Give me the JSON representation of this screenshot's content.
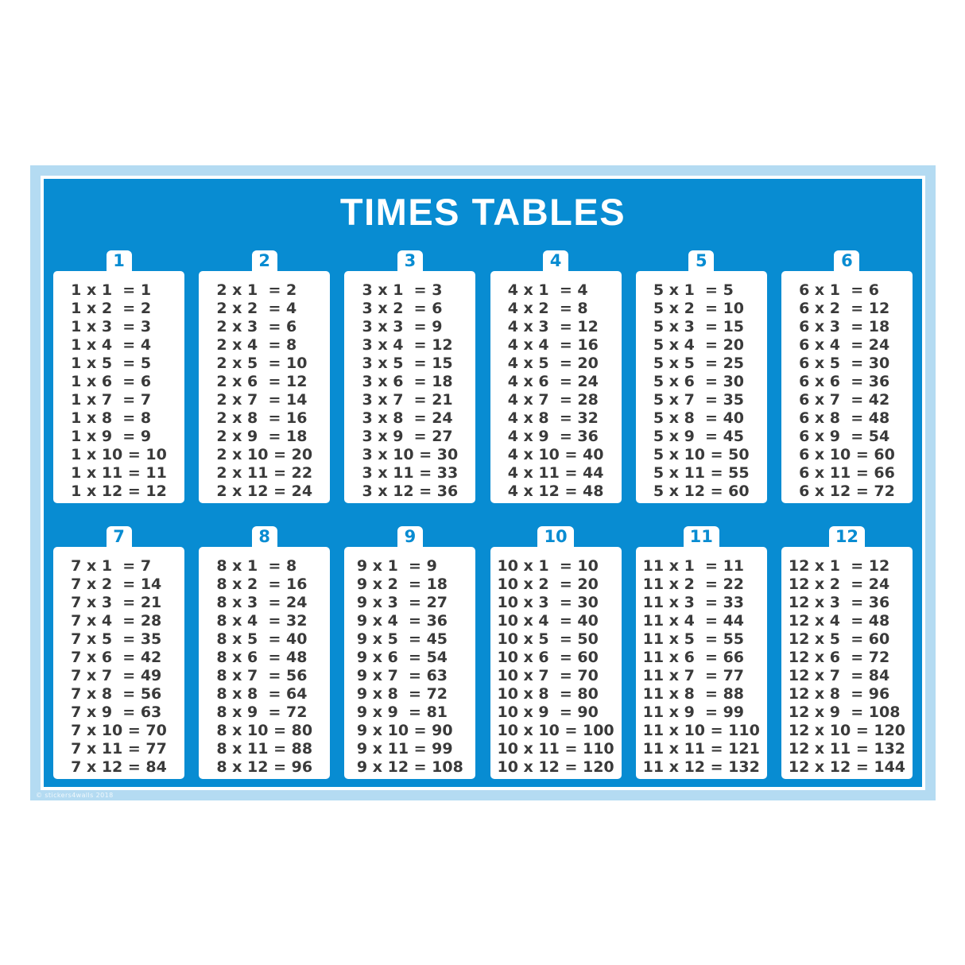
{
  "poster": {
    "title": "TIMES TABLES",
    "copyright": "© stickers4walls 2018"
  },
  "colors": {
    "poster_blue": "#088cd2",
    "frame_light_blue": "#b4dbf2",
    "card_white": "#ffffff",
    "title_white": "#ffffff",
    "equation_gray": "#3a3a3a"
  },
  "tables": [
    {
      "number": "1",
      "lines": [
        "1 x 1  = 1",
        "1 x 2  = 2",
        "1 x 3  = 3",
        "1 x 4  = 4",
        "1 x 5  = 5",
        "1 x 6  = 6",
        "1 x 7  = 7",
        "1 x 8  = 8",
        "1 x 9  = 9",
        "1 x 10 = 10",
        "1 x 11 = 11",
        "1 x 12 = 12"
      ]
    },
    {
      "number": "2",
      "lines": [
        "2 x 1  = 2",
        "2 x 2  = 4",
        "2 x 3  = 6",
        "2 x 4  = 8",
        "2 x 5  = 10",
        "2 x 6  = 12",
        "2 x 7  = 14",
        "2 x 8  = 16",
        "2 x 9  = 18",
        "2 x 10 = 20",
        "2 x 11 = 22",
        "2 x 12 = 24"
      ]
    },
    {
      "number": "3",
      "lines": [
        "3 x 1  = 3",
        "3 x 2  = 6",
        "3 x 3  = 9",
        "3 x 4  = 12",
        "3 x 5  = 15",
        "3 x 6  = 18",
        "3 x 7  = 21",
        "3 x 8  = 24",
        "3 x 9  = 27",
        "3 x 10 = 30",
        "3 x 11 = 33",
        "3 x 12 = 36"
      ]
    },
    {
      "number": "4",
      "lines": [
        "4 x 1  = 4",
        "4 x 2  = 8",
        "4 x 3  = 12",
        "4 x 4  = 16",
        "4 x 5  = 20",
        "4 x 6  = 24",
        "4 x 7  = 28",
        "4 x 8  = 32",
        "4 x 9  = 36",
        "4 x 10 = 40",
        "4 x 11 = 44",
        "4 x 12 = 48"
      ]
    },
    {
      "number": "5",
      "lines": [
        "5 x 1  = 5",
        "5 x 2  = 10",
        "5 x 3  = 15",
        "5 x 4  = 20",
        "5 x 5  = 25",
        "5 x 6  = 30",
        "5 x 7  = 35",
        "5 x 8  = 40",
        "5 x 9  = 45",
        "5 x 10 = 50",
        "5 x 11 = 55",
        "5 x 12 = 60"
      ]
    },
    {
      "number": "6",
      "lines": [
        "6 x 1  = 6",
        "6 x 2  = 12",
        "6 x 3  = 18",
        "6 x 4  = 24",
        "6 x 5  = 30",
        "6 x 6  = 36",
        "6 x 7  = 42",
        "6 x 8  = 48",
        "6 x 9  = 54",
        "6 x 10 = 60",
        "6 x 11 = 66",
        "6 x 12 = 72"
      ]
    },
    {
      "number": "7",
      "lines": [
        "7 x 1  = 7",
        "7 x 2  = 14",
        "7 x 3  = 21",
        "7 x 4  = 28",
        "7 x 5  = 35",
        "7 x 6  = 42",
        "7 x 7  = 49",
        "7 x 8  = 56",
        "7 x 9  = 63",
        "7 x 10 = 70",
        "7 x 11 = 77",
        "7 x 12 = 84"
      ]
    },
    {
      "number": "8",
      "lines": [
        "8 x 1  = 8",
        "8 x 2  = 16",
        "8 x 3  = 24",
        "8 x 4  = 32",
        "8 x 5  = 40",
        "8 x 6  = 48",
        "8 x 7  = 56",
        "8 x 8  = 64",
        "8 x 9  = 72",
        "8 x 10 = 80",
        "8 x 11 = 88",
        "8 x 12 = 96"
      ]
    },
    {
      "number": "9",
      "lines": [
        "9 x 1  = 9",
        "9 x 2  = 18",
        "9 x 3  = 27",
        "9 x 4  = 36",
        "9 x 5  = 45",
        "9 x 6  = 54",
        "9 x 7  = 63",
        "9 x 8  = 72",
        "9 x 9  = 81",
        "9 x 10 = 90",
        "9 x 11 = 99",
        "9 x 12 = 108"
      ]
    },
    {
      "number": "10",
      "lines": [
        "10 x 1  = 10",
        "10 x 2  = 20",
        "10 x 3  = 30",
        "10 x 4  = 40",
        "10 x 5  = 50",
        "10 x 6  = 60",
        "10 x 7  = 70",
        "10 x 8  = 80",
        "10 x 9  = 90",
        "10 x 10 = 100",
        "10 x 11 = 110",
        "10 x 12 = 120"
      ]
    },
    {
      "number": "11",
      "lines": [
        "11 x 1  = 11",
        "11 x 2  = 22",
        "11 x 3  = 33",
        "11 x 4  = 44",
        "11 x 5  = 55",
        "11 x 6  = 66",
        "11 x 7  = 77",
        "11 x 8  = 88",
        "11 x 9  = 99",
        "11 x 10 = 110",
        "11 x 11 = 121",
        "11 x 12 = 132"
      ]
    },
    {
      "number": "12",
      "lines": [
        "12 x 1  = 12",
        "12 x 2  = 24",
        "12 x 3  = 36",
        "12 x 4  = 48",
        "12 x 5  = 60",
        "12 x 6  = 72",
        "12 x 7  = 84",
        "12 x 8  = 96",
        "12 x 9  = 108",
        "12 x 10 = 120",
        "12 x 11 = 132",
        "12 x 12 = 144"
      ]
    }
  ]
}
